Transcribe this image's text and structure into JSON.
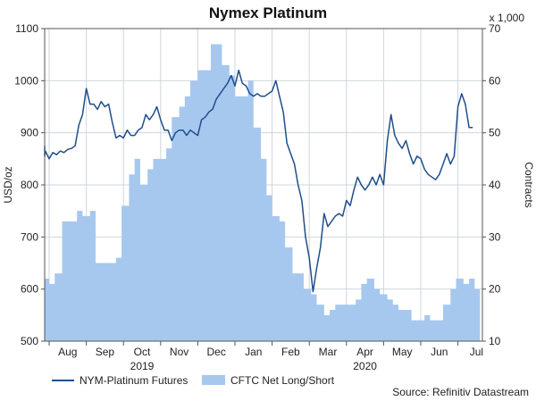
{
  "chart_data": {
    "type": "area+line",
    "title": "Nymex Platinum",
    "left_axis": {
      "label": "USD/oz",
      "min": 500,
      "max": 1100,
      "ticks": [
        500,
        600,
        700,
        800,
        900,
        1000,
        1100
      ]
    },
    "right_axis": {
      "label": "Contracts",
      "multiplier_label": "x 1,000",
      "min": 10,
      "max": 70,
      "ticks": [
        10,
        20,
        30,
        40,
        50,
        60,
        70
      ]
    },
    "x_axis": {
      "months": [
        "Aug",
        "Sep",
        "Oct",
        "Nov",
        "Dec",
        "Jan",
        "Feb",
        "Mar",
        "Apr",
        "May",
        "Jun",
        "Jul"
      ],
      "years": [
        {
          "label": "2019",
          "month": "Oct"
        },
        {
          "label": "2020",
          "month": "Apr"
        }
      ]
    },
    "grid": true,
    "legend": {
      "placement": "bottom-left"
    },
    "series": [
      {
        "name": "NYM-Platinum Futures",
        "axis": "left",
        "style": "line",
        "color": "#1f4e8c",
        "months_x": [
          -0.3,
          -0.2,
          -0.1,
          0.0,
          0.1,
          0.2,
          0.3,
          0.4,
          0.5,
          0.6,
          0.7,
          0.8,
          0.9,
          1.0,
          1.1,
          1.2,
          1.3,
          1.4,
          1.5,
          1.6,
          1.7,
          1.8,
          1.9,
          2.0,
          2.1,
          2.2,
          2.3,
          2.4,
          2.5,
          2.6,
          2.7,
          2.8,
          2.9,
          3.0,
          3.1,
          3.2,
          3.3,
          3.4,
          3.5,
          3.6,
          3.7,
          3.8,
          3.9,
          4.0,
          4.1,
          4.2,
          4.3,
          4.4,
          4.5,
          4.6,
          4.7,
          4.8,
          4.9,
          5.0,
          5.1,
          5.2,
          5.3,
          5.4,
          5.5,
          5.6,
          5.7,
          5.8,
          5.9,
          6.0,
          6.1,
          6.2,
          6.3,
          6.4,
          6.5,
          6.6,
          6.7,
          6.8,
          6.9,
          7.0,
          7.1,
          7.2,
          7.3,
          7.4,
          7.5,
          7.6,
          7.7,
          7.8,
          7.9,
          8.0,
          8.1,
          8.2,
          8.3,
          8.4,
          8.5,
          8.6,
          8.7,
          8.8,
          8.9,
          9.0,
          9.1,
          9.2,
          9.3,
          9.4,
          9.5,
          9.6,
          9.7,
          9.8,
          9.9,
          10.0,
          10.1,
          10.2,
          10.3,
          10.4,
          10.5,
          10.6,
          10.7,
          10.8,
          10.9,
          11.0,
          11.1,
          11.2,
          11.3,
          11.4
        ],
        "values": [
          875,
          855,
          865,
          850,
          862,
          858,
          865,
          862,
          868,
          870,
          875,
          915,
          935,
          985,
          955,
          955,
          945,
          960,
          950,
          955,
          920,
          890,
          895,
          890,
          905,
          895,
          895,
          905,
          910,
          935,
          925,
          935,
          950,
          925,
          905,
          905,
          885,
          900,
          905,
          905,
          895,
          905,
          900,
          895,
          925,
          930,
          940,
          945,
          965,
          975,
          985,
          995,
          1010,
          990,
          1020,
          995,
          990,
          975,
          970,
          975,
          970,
          970,
          975,
          980,
          1000,
          970,
          940,
          880,
          860,
          840,
          800,
          770,
          700,
          660,
          595,
          640,
          680,
          745,
          720,
          730,
          740,
          745,
          740,
          770,
          760,
          790,
          815,
          800,
          790,
          800,
          815,
          800,
          820,
          800,
          885,
          935,
          895,
          880,
          870,
          885,
          860,
          840,
          855,
          850,
          830,
          820,
          815,
          810,
          820,
          840,
          860,
          840,
          855,
          950,
          975,
          955,
          910,
          910
        ]
      },
      {
        "name": "CFTC Net Long/Short",
        "axis": "right",
        "style": "area",
        "color": "#a6c8ef",
        "months_x": [
          -0.55,
          -0.4,
          -0.2,
          0.0,
          0.15,
          0.35,
          0.5,
          0.75,
          0.9,
          1.1,
          1.25,
          1.45,
          1.6,
          1.8,
          1.95,
          2.15,
          2.3,
          2.45,
          2.65,
          2.8,
          3.0,
          3.15,
          3.3,
          3.5,
          3.65,
          3.8,
          4.0,
          4.15,
          4.35,
          4.5,
          4.65,
          4.85,
          5.0,
          5.2,
          5.35,
          5.5,
          5.7,
          5.85,
          6.0,
          6.2,
          6.35,
          6.55,
          6.7,
          6.85,
          7.05,
          7.2,
          7.4,
          7.55,
          7.7,
          7.9,
          8.05,
          8.25,
          8.4,
          8.55,
          8.75,
          8.9,
          9.1,
          9.25,
          9.4,
          9.6,
          9.75,
          9.95,
          10.1,
          10.25,
          10.45,
          10.6,
          10.8,
          10.95,
          11.15,
          11.3,
          11.45
        ],
        "values": [
          26,
          22,
          22,
          21,
          23,
          33,
          33,
          35,
          34,
          35,
          25,
          25,
          25,
          26,
          36,
          42,
          45,
          40,
          43,
          45,
          45,
          47,
          53,
          55,
          57,
          60,
          62,
          62,
          67,
          67,
          63,
          61,
          57,
          57,
          60,
          51,
          45,
          38,
          34,
          33,
          28,
          23,
          23,
          20,
          19,
          17,
          15,
          16,
          17,
          17,
          17,
          18,
          21,
          22,
          20,
          19,
          18,
          17,
          16,
          16,
          14,
          14,
          15,
          14,
          14,
          17,
          20,
          22,
          21,
          22,
          20
        ]
      }
    ]
  },
  "source": "Source: Refinitiv Datastream"
}
